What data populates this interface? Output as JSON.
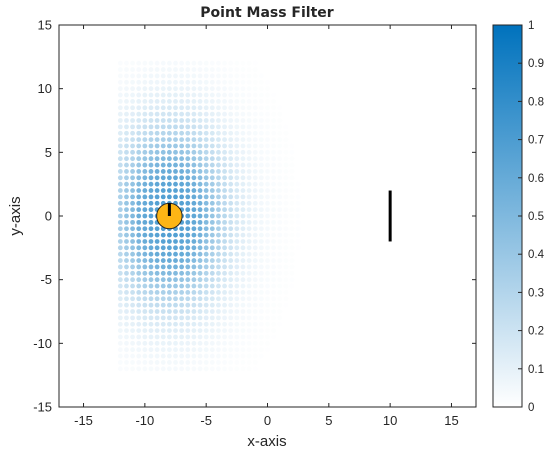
{
  "chart_data": {
    "type": "heatmap",
    "title": "Point Mass Filter",
    "xlabel": "x-axis",
    "ylabel": "y-axis",
    "xlim": [
      -17,
      17
    ],
    "ylim": [
      -15,
      15
    ],
    "xticks": [
      -15,
      -10,
      -5,
      0,
      5,
      10,
      15
    ],
    "yticks": [
      -15,
      -10,
      -5,
      0,
      5,
      10,
      15
    ],
    "xtick_labels": [
      "-15",
      "-10",
      "-5",
      "0",
      "5",
      "10",
      "15"
    ],
    "ytick_labels": [
      "-15",
      "-10",
      "-5",
      "0",
      "5",
      "10",
      "15"
    ],
    "grid": false,
    "colormap": [
      "#ffffff",
      "#0072bd"
    ],
    "colorbar": {
      "range": [
        0,
        1
      ],
      "ticks": [
        0,
        0.1,
        0.2,
        0.3,
        0.4,
        0.5,
        0.6,
        0.7,
        0.8,
        0.9,
        1
      ],
      "tick_labels": [
        "0",
        "0.1",
        "0.2",
        "0.3",
        "0.4",
        "0.5",
        "0.6",
        "0.7",
        "0.8",
        "0.9",
        "1"
      ]
    },
    "point_mass_grid": {
      "x_range": [
        -12,
        8
      ],
      "y_range": [
        -12,
        12
      ],
      "step": 0.5,
      "peak": [
        -8,
        0
      ],
      "peak_density": 0.7,
      "sigma_x": 4,
      "sigma_y": 6,
      "visible_x_limit": 3
    },
    "robot": {
      "x": -8,
      "y": 0,
      "radius": 1,
      "color": "#fdb515",
      "heading_deg": 90
    },
    "landmark": {
      "x": 10,
      "y_start": -2,
      "y_end": 2,
      "color": "#000000"
    }
  }
}
